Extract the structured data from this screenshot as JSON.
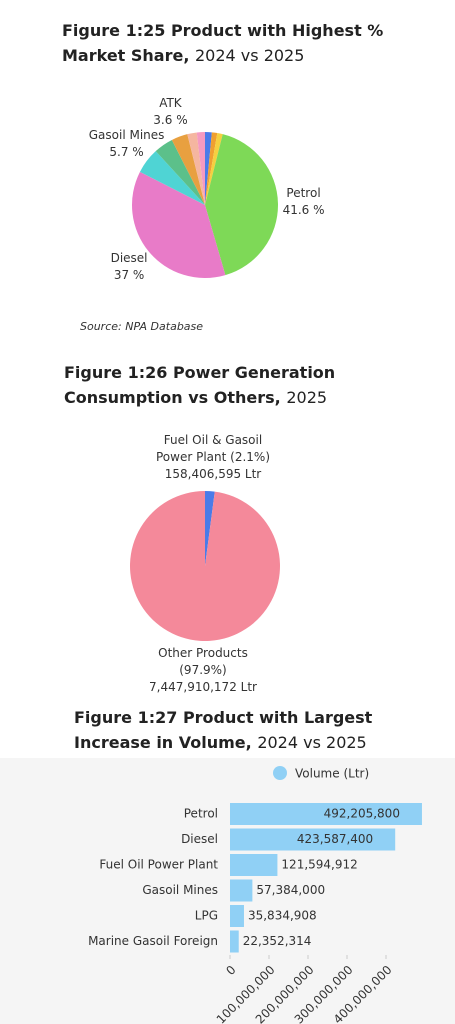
{
  "chart_data": [
    {
      "type": "pie",
      "title": "Figure 1:25  Product with Highest % Market Share,",
      "subtitle": "2024 vs 2025",
      "categories": [
        null,
        null,
        null,
        "Petrol",
        "Diesel",
        "Gasoil Mines",
        null,
        "ATK",
        null,
        null
      ],
      "values": [
        1.5,
        1.2,
        1.2,
        41.6,
        37,
        5.7,
        4.3,
        3.6,
        2.1,
        1.8
      ],
      "value_labels": [
        null,
        null,
        null,
        "41.6 %",
        "37 %",
        "5.7 %",
        null,
        "3.6 %",
        null,
        null
      ],
      "colors": [
        "#4a7be8",
        "#f0a030",
        "#f5d040",
        "#7ed957",
        "#e87bc8",
        "#4fd4d4",
        "#5cc08a",
        "#e8a040",
        "#f5b6a0",
        "#f59ac0"
      ],
      "source": "Source:  NPA Database"
    },
    {
      "type": "pie",
      "title": "Figure 1:26 Power Generation Consumption vs Others,",
      "subtitle": "2025",
      "categories": [
        "Fuel Oil & Gasoil Power Plant (2.1%)",
        "Other Products (97.9%)"
      ],
      "values": [
        158406595,
        7447910172
      ],
      "value_labels": [
        "158,406,595 Ltr",
        "7,447,910,172 Ltr"
      ],
      "colors": [
        "#4a7be8",
        "#f4899a"
      ]
    },
    {
      "type": "bar",
      "orientation": "horizontal",
      "title": "Figure 1:27 Product with Largest Increase in Volume,",
      "subtitle": "2024 vs 2025",
      "categories": [
        "Petrol",
        "Diesel",
        "Fuel Oil Power Plant",
        "Gasoil Mines",
        "LPG",
        "Marine Gasoil Foreign"
      ],
      "series": [
        {
          "name": "Volume (Ltr)",
          "color": "#90d0f5",
          "values": [
            492205800,
            423587400,
            121594912,
            57384000,
            35834908,
            22352314
          ],
          "value_labels": [
            "492,205,800",
            "423,587,400",
            "121,594,912",
            "57,384,000",
            "35,834,908",
            "22,352,314"
          ]
        }
      ],
      "xlim": [
        0,
        500000000
      ],
      "xticks": [
        0,
        {
          "value": 100000000,
          "label": "100,000,000"
        },
        {
          "value": 200000000,
          "label": "200,000,000"
        },
        {
          "value": 300000000,
          "label": "300,000,000"
        },
        {
          "value": 400000000,
          "label": "400,000,000"
        }
      ]
    }
  ]
}
